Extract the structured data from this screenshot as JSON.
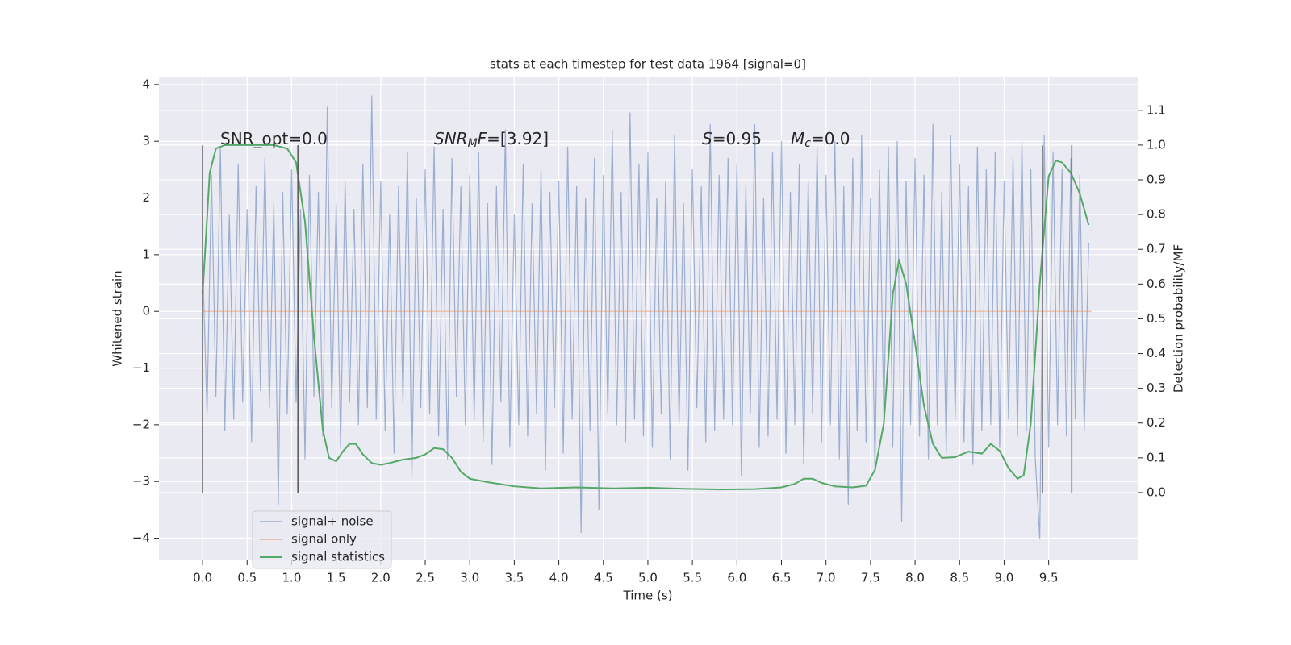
{
  "chart_data": {
    "type": "line",
    "title": "stats at each timestep for test data 1964 [signal=0]",
    "xlabel": "Time (s)",
    "ylabel": "Whitened strain",
    "y2label": "Detection probability/MF",
    "xlim": [
      -0.49,
      10.5
    ],
    "ylim": [
      -4.39,
      4.14
    ],
    "y2lim": [
      -0.195,
      1.197
    ],
    "xticks": [
      {
        "value": 0,
        "label": "0.0"
      },
      0.5,
      {
        "value": 1,
        "label": "1.0"
      },
      1.5,
      {
        "value": 2,
        "label": "2.0"
      },
      2.5,
      {
        "value": 3,
        "label": "3.0"
      },
      3.5,
      {
        "value": 4,
        "label": "4.0"
      },
      4.5,
      {
        "value": 5,
        "label": "5.0"
      },
      5.5,
      {
        "value": 6,
        "label": "6.0"
      },
      6.5,
      {
        "value": 7,
        "label": "7.0"
      },
      7.5,
      {
        "value": 8,
        "label": "8.0"
      },
      8.5,
      {
        "value": 9,
        "label": "9.0"
      },
      9.5
    ],
    "yticks": [
      {
        "value": -4,
        "label": "−4"
      },
      {
        "value": -3,
        "label": "−3"
      },
      {
        "value": -2,
        "label": "−2"
      },
      {
        "value": -1,
        "label": "−1"
      },
      0,
      1,
      2,
      3,
      4
    ],
    "y2ticks": [
      {
        "value": 0,
        "label": "0.0"
      },
      0.1,
      0.2,
      0.3,
      0.4,
      0.5,
      0.6,
      0.7,
      0.8,
      0.9,
      {
        "value": 1,
        "label": "1.0"
      },
      1.1
    ],
    "grid": true,
    "legend": "lower left",
    "annotations": [
      {
        "segments": [
          {
            "text": "SNR_opt=0.0"
          }
        ]
      },
      {
        "segments": [
          {
            "text": "SNR",
            "style": "italic"
          },
          {
            "text": "M",
            "style": "sub"
          },
          {
            "text": "F",
            "style": "italic"
          },
          {
            "text": "=[3.92]"
          }
        ]
      },
      {
        "segments": [
          {
            "text": "S",
            "style": "italic"
          },
          {
            "text": "=0.95"
          }
        ]
      },
      {
        "segments": [
          {
            "text": "M",
            "style": "italic"
          },
          {
            "text": "c",
            "style": "sub"
          },
          {
            "text": "=0.0"
          }
        ]
      }
    ],
    "vlines": {
      "x": [
        0.0,
        1.07,
        9.43,
        9.76
      ],
      "ymin": -3.2,
      "ymax": 2.93,
      "color": "#555555"
    },
    "series": [
      {
        "name": "signal+ noise",
        "color": "#4c72b0",
        "opacity": 0.5,
        "x": [
          0,
          0.05,
          0.1,
          0.15,
          0.2,
          0.25,
          0.3,
          0.35,
          0.4,
          0.45,
          0.5,
          0.55,
          0.6,
          0.65,
          0.7,
          0.75,
          0.8,
          0.85,
          0.9,
          0.95,
          1,
          1.05,
          1.1,
          1.15,
          1.2,
          1.25,
          1.3,
          1.35,
          1.4,
          1.45,
          1.5,
          1.55,
          1.6,
          1.65,
          1.7,
          1.75,
          1.8,
          1.85,
          1.9,
          1.95,
          2,
          2.05,
          2.1,
          2.15,
          2.2,
          2.25,
          2.3,
          2.35,
          2.4,
          2.45,
          2.5,
          2.55,
          2.6,
          2.65,
          2.7,
          2.75,
          2.8,
          2.85,
          2.9,
          2.95,
          3,
          3.05,
          3.1,
          3.15,
          3.2,
          3.25,
          3.3,
          3.35,
          3.4,
          3.45,
          3.5,
          3.55,
          3.6,
          3.65,
          3.7,
          3.75,
          3.8,
          3.85,
          3.9,
          3.95,
          4,
          4.05,
          4.1,
          4.15,
          4.2,
          4.25,
          4.3,
          4.35,
          4.4,
          4.45,
          4.5,
          4.55,
          4.6,
          4.65,
          4.7,
          4.75,
          4.8,
          4.85,
          4.9,
          4.95,
          5,
          5.05,
          5.1,
          5.15,
          5.2,
          5.25,
          5.3,
          5.35,
          5.4,
          5.45,
          5.5,
          5.55,
          5.6,
          5.65,
          5.7,
          5.75,
          5.8,
          5.85,
          5.9,
          5.95,
          6,
          6.05,
          6.1,
          6.15,
          6.2,
          6.25,
          6.3,
          6.35,
          6.4,
          6.45,
          6.5,
          6.55,
          6.6,
          6.65,
          6.7,
          6.75,
          6.8,
          6.85,
          6.9,
          6.95,
          7,
          7.05,
          7.1,
          7.15,
          7.2,
          7.25,
          7.3,
          7.35,
          7.4,
          7.45,
          7.5,
          7.55,
          7.6,
          7.65,
          7.7,
          7.75,
          7.8,
          7.85,
          7.9,
          7.95,
          8,
          8.05,
          8.1,
          8.15,
          8.2,
          8.25,
          8.3,
          8.35,
          8.4,
          8.45,
          8.5,
          8.55,
          8.6,
          8.65,
          8.7,
          8.75,
          8.8,
          8.85,
          8.9,
          8.95,
          9,
          9.05,
          9.1,
          9.15,
          9.2,
          9.25,
          9.3,
          9.35,
          9.4,
          9.45,
          9.5,
          9.55,
          9.6,
          9.65,
          9.7,
          9.75,
          9.8,
          9.85,
          9.9,
          9.95
        ],
        "values": [
          0.9,
          -1.8,
          2.4,
          -1.5,
          2.9,
          -2.1,
          1.7,
          -1.9,
          2.6,
          -1.6,
          1.8,
          -2.3,
          2.2,
          -1.4,
          2.7,
          -1.7,
          1.9,
          -3.4,
          2.1,
          -1.8,
          2.5,
          -1.6,
          1.8,
          -2.6,
          2.4,
          -1.5,
          2.1,
          -2.2,
          3.6,
          -1.7,
          1.9,
          -2.4,
          2.3,
          -1.6,
          1.8,
          -2.0,
          2.6,
          -1.7,
          3.8,
          -1.9,
          2.3,
          -2.1,
          1.7,
          -2.5,
          2.2,
          -1.6,
          2.8,
          -2.9,
          2.0,
          -1.7,
          2.5,
          -1.8,
          2.9,
          -2.2,
          1.8,
          -2.6,
          2.7,
          -1.5,
          2.2,
          -2.0,
          2.4,
          -1.9,
          2.8,
          -2.3,
          1.9,
          -2.7,
          2.2,
          -1.6,
          3.2,
          -2.4,
          1.7,
          -2.0,
          2.6,
          -2.2,
          1.9,
          -1.8,
          2.5,
          -2.8,
          2.1,
          -1.7,
          2.3,
          -2.5,
          2.9,
          -1.9,
          2.2,
          -3.9,
          2.0,
          -2.1,
          2.7,
          -3.5,
          2.4,
          -1.8,
          3.2,
          -2.0,
          2.1,
          -2.3,
          3.5,
          -1.9,
          2.6,
          -2.2,
          2.8,
          -2.4,
          2.0,
          -1.8,
          2.3,
          -2.6,
          3.1,
          -2.0,
          1.9,
          -2.8,
          2.5,
          -1.7,
          2.2,
          -2.3,
          3.3,
          -2.1,
          2.4,
          -1.9,
          2.7,
          -2.0,
          2.6,
          -2.9,
          2.2,
          -1.8,
          3.3,
          -2.4,
          2.0,
          -2.2,
          2.8,
          -1.9,
          3.0,
          -2.5,
          2.1,
          -2.0,
          2.6,
          -2.7,
          2.3,
          -1.8,
          2.9,
          -2.3,
          2.4,
          -2.0,
          3.0,
          -2.6,
          2.2,
          -3.4,
          2.7,
          -2.1,
          3.1,
          -2.3,
          2.0,
          -2.8,
          2.5,
          -1.9,
          2.9,
          -2.4,
          3.0,
          -3.7,
          2.3,
          -2.0,
          2.7,
          -2.2,
          2.4,
          -2.6,
          3.3,
          -2.0,
          2.1,
          -2.5,
          3.1,
          -1.9,
          2.6,
          -2.3,
          2.2,
          -2.7,
          2.9,
          -2.1,
          2.5,
          -2.0,
          2.8,
          -2.4,
          2.3,
          -1.9,
          2.7,
          -2.2,
          3.0,
          -2.1,
          2.5,
          -2.6,
          -4.0,
          3.1,
          -2.4,
          2.8,
          -2.0,
          2.5,
          -2.2,
          2.7,
          -1.9,
          2.4,
          -2.1,
          1.2
        ]
      },
      {
        "name": "signal only",
        "color": "#dd8452",
        "opacity": 0.6,
        "x": [
          0,
          9.98
        ],
        "values": [
          0,
          0
        ]
      },
      {
        "name": "signal statistics",
        "color": "#55a868",
        "opacity": 1,
        "axis": "y2",
        "x": [
          0,
          0.08,
          0.15,
          0.25,
          0.5,
          0.8,
          0.95,
          1.05,
          1.15,
          1.25,
          1.35,
          1.42,
          1.5,
          1.58,
          1.65,
          1.72,
          1.8,
          1.9,
          2.0,
          2.1,
          2.25,
          2.4,
          2.5,
          2.6,
          2.7,
          2.8,
          2.9,
          3.0,
          3.2,
          3.5,
          3.8,
          4.2,
          4.6,
          5.0,
          5.4,
          5.8,
          6.2,
          6.5,
          6.65,
          6.75,
          6.85,
          6.95,
          7.1,
          7.3,
          7.45,
          7.55,
          7.65,
          7.75,
          7.82,
          7.9,
          8.0,
          8.1,
          8.2,
          8.3,
          8.45,
          8.6,
          8.75,
          8.85,
          8.95,
          9.05,
          9.15,
          9.22,
          9.3,
          9.4,
          9.5,
          9.58,
          9.65,
          9.75,
          9.85,
          9.95
        ],
        "values": [
          0.57,
          0.92,
          0.99,
          1.0,
          1.0,
          1.0,
          0.99,
          0.95,
          0.78,
          0.45,
          0.18,
          0.1,
          0.09,
          0.12,
          0.14,
          0.14,
          0.11,
          0.085,
          0.08,
          0.085,
          0.095,
          0.1,
          0.11,
          0.128,
          0.125,
          0.1,
          0.06,
          0.04,
          0.03,
          0.018,
          0.012,
          0.015,
          0.012,
          0.014,
          0.011,
          0.009,
          0.01,
          0.015,
          0.025,
          0.04,
          0.04,
          0.028,
          0.018,
          0.015,
          0.02,
          0.065,
          0.2,
          0.57,
          0.67,
          0.6,
          0.43,
          0.25,
          0.14,
          0.1,
          0.102,
          0.118,
          0.112,
          0.14,
          0.12,
          0.07,
          0.04,
          0.05,
          0.2,
          0.6,
          0.91,
          0.955,
          0.95,
          0.92,
          0.86,
          0.77
        ]
      }
    ]
  }
}
